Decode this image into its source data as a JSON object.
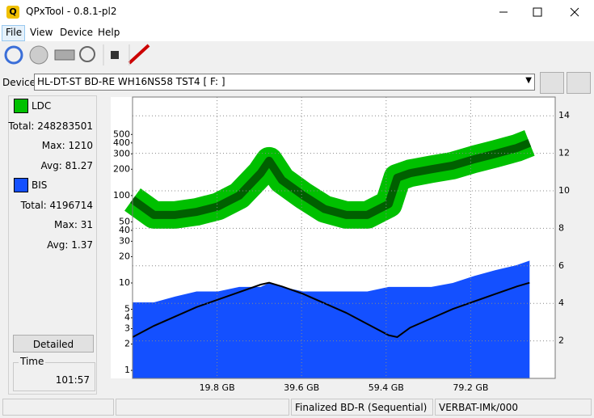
{
  "window": {
    "title": "QPxTool - 0.8.1-pl2"
  },
  "menu": [
    "File",
    "View",
    "Device",
    "Help"
  ],
  "device": {
    "label": "Device:",
    "value": "HL-DT-ST BD-RE  WH16NS58  TST4 [ F: ]"
  },
  "ldc_stats": {
    "total_label": "Total:",
    "total": 248283501,
    "max_label": "Max:",
    "max": 1210,
    "avg_label": "Avg:",
    "avg": 81.27
  },
  "bis_stats": {
    "total_label": "Total:",
    "total": 4196714,
    "max_label": "Max:",
    "max": 31,
    "avg_label": "Avg:",
    "avg": 1.37
  },
  "detailed_button": "Detailed",
  "time": {
    "label": "Time",
    "value": "101:57"
  },
  "status": [
    "Finalized BD-R (Sequential)",
    "VERBAT-IMk/000"
  ],
  "chart_data": {
    "type": "line",
    "x": [
      0,
      5,
      10,
      15,
      20,
      25,
      30,
      32,
      35,
      40,
      45,
      50,
      55,
      60,
      62,
      65,
      70,
      75,
      80,
      85,
      90,
      93
    ],
    "series": [
      {
        "name": "LDC",
        "color": "#00c000",
        "values": [
          90,
          60,
          60,
          65,
          75,
          100,
          180,
          250,
          150,
          100,
          70,
          60,
          60,
          80,
          160,
          180,
          200,
          220,
          260,
          300,
          350,
          400
        ]
      },
      {
        "name": "BIS",
        "color": "#1450ff",
        "values": [
          6,
          6,
          7,
          8,
          8,
          9,
          9,
          10,
          9,
          8,
          8,
          8,
          8,
          9,
          9,
          9,
          9,
          10,
          12,
          14,
          16,
          18
        ]
      },
      {
        "color": "#000000",
        "axis": "y2",
        "values": [
          2.2,
          2.8,
          3.3,
          3.8,
          4.2,
          4.6,
          5.0,
          5.1,
          4.9,
          4.5,
          4.0,
          3.5,
          2.9,
          2.3,
          2.2,
          2.7,
          3.2,
          3.7,
          4.1,
          4.5,
          4.9,
          5.1
        ]
      }
    ],
    "xlim": [
      0,
      99
    ],
    "xticks": [
      {
        "value": 19.8,
        "label": "19.8 GB"
      },
      {
        "value": 39.6,
        "label": "39.6 GB"
      },
      {
        "value": 59.4,
        "label": "59.4 GB"
      },
      {
        "value": 79.2,
        "label": "79.2 GB"
      }
    ],
    "ylim": [
      0.81,
      1340
    ],
    "log_scale": true,
    "yticks": [
      1,
      2,
      3,
      4,
      5,
      10,
      20,
      30,
      40,
      50,
      100,
      200,
      300,
      400,
      500
    ],
    "y2lim": [
      0,
      15
    ],
    "y2ticks": [
      2,
      4,
      6,
      8,
      10,
      12,
      14
    ],
    "grid": true
  }
}
